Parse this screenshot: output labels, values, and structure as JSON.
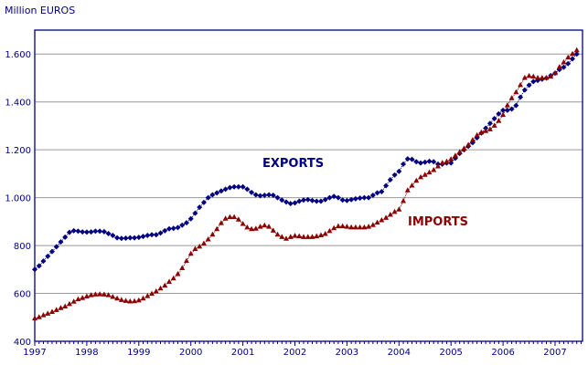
{
  "chart_data": {
    "type": "line",
    "title": "",
    "ylabel": "Million EUROS",
    "xlabel": "",
    "ylim": [
      400,
      1700
    ],
    "yticks": [
      400,
      600,
      800,
      1000,
      1200,
      1400,
      1600
    ],
    "ytick_labels": [
      "400",
      "600",
      "800",
      "1.000",
      "1.200",
      "1.400",
      "1.600"
    ],
    "xlim": [
      1997,
      2007.5
    ],
    "xticks": [
      1997,
      1998,
      1999,
      2000,
      2001,
      2002,
      2003,
      2004,
      2005,
      2006,
      2007
    ],
    "xtick_labels": [
      "1997",
      "1998",
      "1999",
      "2000",
      "2001",
      "2002",
      "2003",
      "2004",
      "2005",
      "2006",
      "2007"
    ],
    "grid": true,
    "frequency": "monthly, starting January 1997",
    "series": [
      {
        "name": "EXPORTS",
        "color": "#000080",
        "marker": "diamond",
        "values": [
          700,
          715,
          735,
          755,
          775,
          795,
          815,
          835,
          855,
          862,
          860,
          857,
          856,
          857,
          860,
          860,
          858,
          850,
          842,
          832,
          830,
          831,
          832,
          832,
          834,
          838,
          842,
          845,
          845,
          852,
          862,
          870,
          872,
          875,
          885,
          895,
          912,
          935,
          960,
          980,
          1000,
          1012,
          1020,
          1028,
          1035,
          1042,
          1045,
          1045,
          1045,
          1035,
          1022,
          1012,
          1008,
          1010,
          1012,
          1010,
          1000,
          990,
          982,
          975,
          978,
          985,
          990,
          992,
          988,
          985,
          985,
          992,
          1000,
          1005,
          1000,
          990,
          988,
          992,
          995,
          998,
          1000,
          1000,
          1010,
          1020,
          1025,
          1050,
          1075,
          1095,
          1110,
          1140,
          1162,
          1160,
          1150,
          1145,
          1148,
          1152,
          1150,
          1140,
          1140,
          1145,
          1145,
          1165,
          1185,
          1200,
          1215,
          1230,
          1250,
          1270,
          1290,
          1310,
          1330,
          1350,
          1365,
          1365,
          1370,
          1385,
          1420,
          1450,
          1470,
          1485,
          1490,
          1495,
          1500,
          1510,
          1520,
          1535,
          1545,
          1560,
          1580,
          1600
        ]
      },
      {
        "name": "IMPORTS",
        "color": "#8b0000",
        "marker": "triangle",
        "values": [
          495,
          500,
          508,
          515,
          522,
          530,
          538,
          545,
          555,
          565,
          575,
          580,
          587,
          592,
          595,
          596,
          595,
          592,
          585,
          578,
          572,
          568,
          566,
          567,
          570,
          578,
          588,
          598,
          608,
          620,
          632,
          648,
          662,
          680,
          705,
          735,
          765,
          785,
          795,
          808,
          825,
          845,
          868,
          893,
          912,
          918,
          918,
          908,
          890,
          875,
          868,
          870,
          878,
          883,
          878,
          862,
          845,
          835,
          828,
          835,
          840,
          838,
          835,
          835,
          835,
          838,
          842,
          848,
          860,
          872,
          880,
          880,
          878,
          875,
          875,
          875,
          875,
          878,
          885,
          895,
          905,
          915,
          928,
          940,
          950,
          985,
          1030,
          1050,
          1070,
          1085,
          1095,
          1105,
          1115,
          1130,
          1145,
          1150,
          1160,
          1175,
          1190,
          1205,
          1220,
          1240,
          1260,
          1272,
          1278,
          1285,
          1300,
          1320,
          1345,
          1385,
          1415,
          1440,
          1470,
          1500,
          1508,
          1505,
          1500,
          1500,
          1500,
          1505,
          1520,
          1545,
          1565,
          1585,
          1600,
          1615
        ]
      }
    ]
  }
}
